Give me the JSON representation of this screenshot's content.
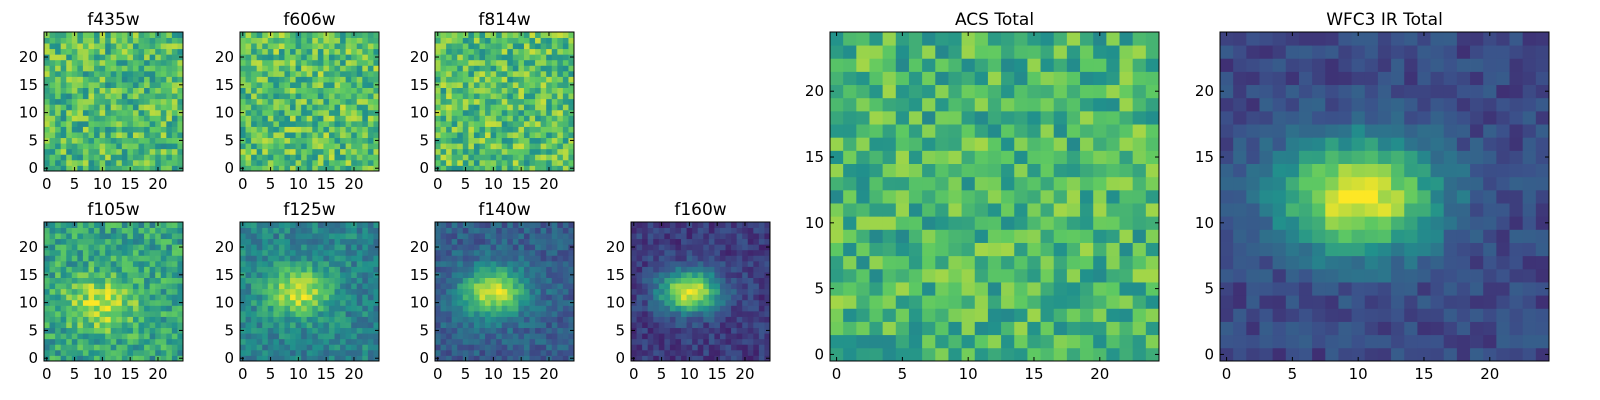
{
  "figure": {
    "colormap": "viridis",
    "colormap_stops": [
      "#440154",
      "#3b528b",
      "#21918c",
      "#5ec962",
      "#fde725"
    ]
  },
  "chart_data": [
    {
      "type": "heatmap",
      "title": "f435w",
      "grid_size": 25,
      "extent": [
        -0.5,
        24.5
      ],
      "xticks": [
        0,
        5,
        10,
        15,
        20
      ],
      "yticks": [
        0,
        5,
        10,
        15,
        20
      ],
      "pattern": "noise",
      "mean_level": 0.68,
      "noise_level": 0.22,
      "source_peak": 0.0,
      "source_center": [
        10,
        12
      ],
      "source_sigma": [
        4.0,
        3.0
      ],
      "seed": 11
    },
    {
      "type": "heatmap",
      "title": "f606w",
      "grid_size": 25,
      "extent": [
        -0.5,
        24.5
      ],
      "xticks": [
        0,
        5,
        10,
        15,
        20
      ],
      "yticks": [
        0,
        5,
        10,
        15,
        20
      ],
      "pattern": "noise",
      "mean_level": 0.7,
      "noise_level": 0.22,
      "source_peak": 0.0,
      "source_center": [
        10,
        12
      ],
      "source_sigma": [
        4.0,
        3.0
      ],
      "seed": 23
    },
    {
      "type": "heatmap",
      "title": "f814w",
      "grid_size": 25,
      "extent": [
        -0.5,
        24.5
      ],
      "xticks": [
        0,
        5,
        10,
        15,
        20
      ],
      "yticks": [
        0,
        5,
        10,
        15,
        20
      ],
      "pattern": "noise",
      "mean_level": 0.7,
      "noise_level": 0.22,
      "source_peak": 0.0,
      "source_center": [
        10,
        12
      ],
      "source_sigma": [
        4.0,
        3.0
      ],
      "seed": 37
    },
    {
      "type": "heatmap",
      "title": "f105w",
      "grid_size": 25,
      "extent": [
        -0.5,
        24.5
      ],
      "xticks": [
        0,
        5,
        10,
        15,
        20
      ],
      "yticks": [
        0,
        5,
        10,
        15,
        20
      ],
      "pattern": "source",
      "mean_level": 0.58,
      "noise_level": 0.18,
      "source_peak": 0.32,
      "source_center": [
        10,
        10
      ],
      "source_sigma": [
        4.5,
        3.5
      ],
      "seed": 41
    },
    {
      "type": "heatmap",
      "title": "f125w",
      "grid_size": 25,
      "extent": [
        -0.5,
        24.5
      ],
      "xticks": [
        0,
        5,
        10,
        15,
        20
      ],
      "yticks": [
        0,
        5,
        10,
        15,
        20
      ],
      "pattern": "source",
      "mean_level": 0.45,
      "noise_level": 0.13,
      "source_peak": 0.48,
      "source_center": [
        10,
        12
      ],
      "source_sigma": [
        4.0,
        3.0
      ],
      "seed": 53
    },
    {
      "type": "heatmap",
      "title": "f140w",
      "grid_size": 25,
      "extent": [
        -0.5,
        24.5
      ],
      "xticks": [
        0,
        5,
        10,
        15,
        20
      ],
      "yticks": [
        0,
        5,
        10,
        15,
        20
      ],
      "pattern": "source",
      "mean_level": 0.3,
      "noise_level": 0.1,
      "source_peak": 0.65,
      "source_center": [
        10,
        12
      ],
      "source_sigma": [
        4.0,
        3.0
      ],
      "seed": 67
    },
    {
      "type": "heatmap",
      "title": "f160w",
      "grid_size": 25,
      "extent": [
        -0.5,
        24.5
      ],
      "xticks": [
        0,
        5,
        10,
        15,
        20
      ],
      "yticks": [
        0,
        5,
        10,
        15,
        20
      ],
      "pattern": "source",
      "mean_level": 0.18,
      "noise_level": 0.09,
      "source_peak": 0.8,
      "source_center": [
        10,
        12
      ],
      "source_sigma": [
        3.8,
        2.6
      ],
      "seed": 79
    },
    {
      "type": "heatmap",
      "title": "ACS Total",
      "grid_size": 25,
      "extent": [
        -0.5,
        24.5
      ],
      "xticks": [
        0,
        5,
        10,
        15,
        20
      ],
      "yticks": [
        0,
        5,
        10,
        15,
        20
      ],
      "pattern": "noise",
      "mean_level": 0.66,
      "noise_level": 0.2,
      "source_peak": 0.0,
      "source_center": [
        10,
        12
      ],
      "source_sigma": [
        4.0,
        3.0
      ],
      "seed": 97
    },
    {
      "type": "heatmap",
      "title": "WFC3 IR Total",
      "grid_size": 25,
      "extent": [
        -0.5,
        24.5
      ],
      "xticks": [
        0,
        5,
        10,
        15,
        20
      ],
      "yticks": [
        0,
        5,
        10,
        15,
        20
      ],
      "pattern": "source",
      "mean_level": 0.22,
      "noise_level": 0.08,
      "source_peak": 0.78,
      "source_center": [
        10,
        12
      ],
      "source_sigma": [
        4.2,
        3.0
      ],
      "seed": 103
    }
  ]
}
